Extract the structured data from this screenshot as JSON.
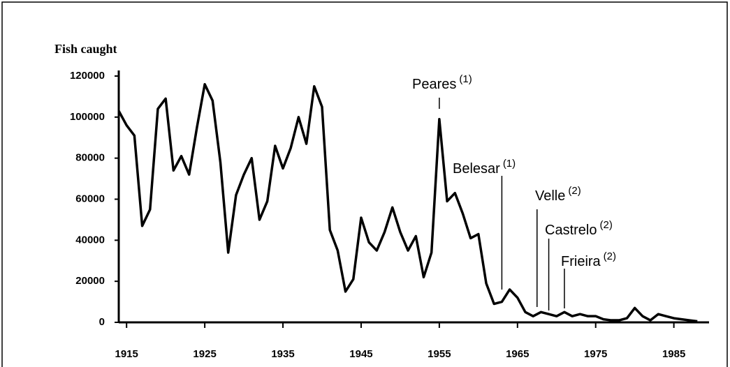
{
  "chart_data": {
    "type": "line",
    "ylabel": "Fish caught",
    "x": [
      1914,
      1915,
      1916,
      1917,
      1918,
      1919,
      1920,
      1921,
      1922,
      1923,
      1924,
      1925,
      1926,
      1927,
      1928,
      1929,
      1930,
      1931,
      1932,
      1933,
      1934,
      1935,
      1936,
      1937,
      1938,
      1939,
      1940,
      1941,
      1942,
      1943,
      1944,
      1945,
      1946,
      1947,
      1948,
      1949,
      1950,
      1951,
      1952,
      1953,
      1954,
      1955,
      1956,
      1957,
      1958,
      1959,
      1960,
      1961,
      1962,
      1963,
      1964,
      1965,
      1966,
      1967,
      1968,
      1969,
      1970,
      1971,
      1972,
      1973,
      1974,
      1975,
      1976,
      1977,
      1978,
      1979,
      1980,
      1981,
      1982,
      1983,
      1984,
      1985,
      1986,
      1987,
      1988
    ],
    "series": [
      {
        "name": null,
        "color": "#000000",
        "values": [
          103000,
          96000,
          91000,
          47000,
          55000,
          104000,
          109000,
          74000,
          81000,
          72000,
          95000,
          116000,
          108000,
          78000,
          34000,
          62000,
          72000,
          80000,
          50000,
          59000,
          86000,
          75000,
          85000,
          100000,
          87000,
          115000,
          105000,
          45000,
          35000,
          15000,
          21000,
          51000,
          39000,
          35000,
          44000,
          56000,
          44000,
          35000,
          42000,
          22000,
          34000,
          99000,
          59000,
          63000,
          53000,
          41000,
          43000,
          19000,
          9000,
          10000,
          16000,
          12000,
          5000,
          3000,
          5000,
          4000,
          3000,
          5000,
          3000,
          4000,
          3000,
          3000,
          1500,
          1000,
          1000,
          2000,
          7000,
          3000,
          1000,
          4000,
          3000,
          2000,
          1500,
          1000,
          500
        ]
      }
    ],
    "xlim": [
      1914,
      1989.5
    ],
    "xticks": [
      1915,
      1925,
      1935,
      1945,
      1955,
      1965,
      1975,
      1985
    ],
    "ylim": [
      0,
      120000
    ],
    "yticks": [
      0,
      20000,
      40000,
      60000,
      80000,
      100000,
      120000
    ],
    "annotations": [
      {
        "label": "Peares",
        "note": "(1)",
        "year": 1955
      },
      {
        "label": "Belesar",
        "note": "(1)",
        "year": 1963
      },
      {
        "label": "Velle",
        "note": "(2)",
        "year": 1967.5
      },
      {
        "label": "Castrelo",
        "note": "(2)",
        "year": 1969
      },
      {
        "label": "Frieira",
        "note": "(2)",
        "year": 1971
      }
    ]
  }
}
